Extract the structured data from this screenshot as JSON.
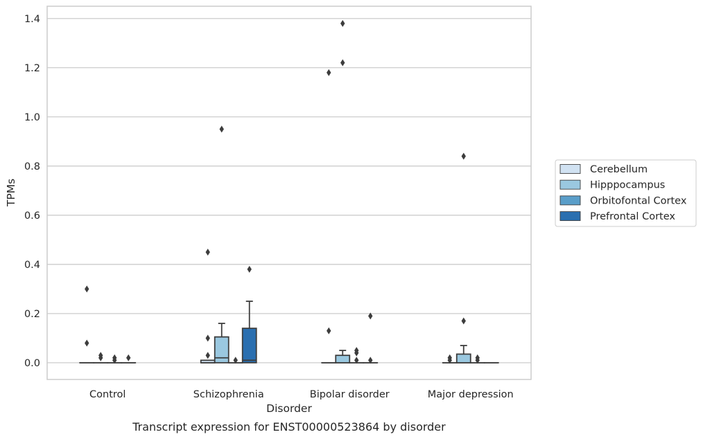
{
  "chart_data": {
    "type": "box",
    "title": "",
    "caption": "Transcript expression for ENST00000523864 by disorder",
    "xlabel": "Disorder",
    "ylabel": "TPMs",
    "ylim": [
      -0.068,
      1.45
    ],
    "yticks": [
      "0.0",
      "0.2",
      "0.4",
      "0.6",
      "0.8",
      "1.0",
      "1.2",
      "1.4"
    ],
    "grid": "horizontal",
    "legend_position": "right",
    "categories": [
      "Control",
      "Schizophrenia",
      "Bipolar disorder",
      "Major depression"
    ],
    "series": [
      {
        "name": "Cerebellum",
        "color": "#d1e2f2",
        "boxes": [
          {
            "q1": 0,
            "median": 0,
            "q3": 0,
            "whisker_low": 0,
            "whisker_high": 0,
            "outliers": [
              0.3,
              0.08
            ]
          },
          {
            "q1": 0,
            "median": 0,
            "q3": 0.01,
            "whisker_low": 0,
            "whisker_high": 0.01,
            "outliers": [
              0.45,
              0.1,
              0.03
            ]
          },
          {
            "q1": 0,
            "median": 0,
            "q3": 0,
            "whisker_low": 0,
            "whisker_high": 0,
            "outliers": [
              1.18,
              0.13
            ]
          },
          {
            "q1": 0,
            "median": 0,
            "q3": 0,
            "whisker_low": 0,
            "whisker_high": 0,
            "outliers": [
              0.02,
              0.01
            ]
          }
        ]
      },
      {
        "name": "Hipppocampus",
        "color": "#9ac8e0",
        "boxes": [
          {
            "q1": 0,
            "median": 0,
            "q3": 0,
            "whisker_low": 0,
            "whisker_high": 0,
            "outliers": [
              0.03,
              0.02
            ]
          },
          {
            "q1": 0,
            "median": 0.02,
            "q3": 0.105,
            "whisker_low": 0,
            "whisker_high": 0.16,
            "outliers": [
              0.95
            ]
          },
          {
            "q1": 0,
            "median": 0,
            "q3": 0.03,
            "whisker_low": 0,
            "whisker_high": 0.05,
            "outliers": [
              1.38,
              1.22
            ]
          },
          {
            "q1": 0,
            "median": 0,
            "q3": 0.035,
            "whisker_low": 0,
            "whisker_high": 0.07,
            "outliers": [
              0.84,
              0.17
            ]
          }
        ]
      },
      {
        "name": "Orbitofontal Cortex",
        "color": "#5a9ec9",
        "boxes": [
          {
            "q1": 0,
            "median": 0,
            "q3": 0,
            "whisker_low": 0,
            "whisker_high": 0,
            "outliers": [
              0.02,
              0.01
            ]
          },
          {
            "q1": 0,
            "median": 0,
            "q3": 0,
            "whisker_low": 0,
            "whisker_high": 0,
            "outliers": [
              0.01
            ]
          },
          {
            "q1": 0,
            "median": 0,
            "q3": 0,
            "whisker_low": 0,
            "whisker_high": 0,
            "outliers": [
              0.05,
              0.04,
              0.01
            ]
          },
          {
            "q1": 0,
            "median": 0,
            "q3": 0,
            "whisker_low": 0,
            "whisker_high": 0,
            "outliers": [
              0.02,
              0.01
            ]
          }
        ]
      },
      {
        "name": "Prefrontal Cortex",
        "color": "#2a6fb0",
        "boxes": [
          {
            "q1": 0,
            "median": 0,
            "q3": 0,
            "whisker_low": 0,
            "whisker_high": 0,
            "outliers": [
              0.02
            ]
          },
          {
            "q1": 0,
            "median": 0.01,
            "q3": 0.14,
            "whisker_low": 0,
            "whisker_high": 0.25,
            "outliers": [
              0.38
            ]
          },
          {
            "q1": 0,
            "median": 0,
            "q3": 0,
            "whisker_low": 0,
            "whisker_high": 0,
            "outliers": [
              0.19,
              0.01
            ]
          },
          {
            "q1": 0,
            "median": 0,
            "q3": 0,
            "whisker_low": 0,
            "whisker_high": 0,
            "outliers": []
          }
        ]
      }
    ]
  }
}
